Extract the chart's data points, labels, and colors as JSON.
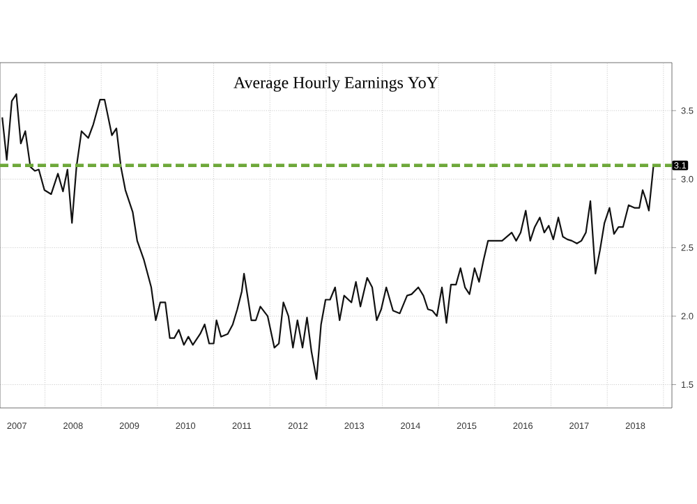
{
  "chart_data": {
    "type": "line",
    "title": "Average Hourly Earnings YoY",
    "x": [
      2007.24,
      2007.32,
      2007.41,
      2007.49,
      2007.57,
      2007.65,
      2007.74,
      2007.82,
      2007.89,
      2007.99,
      2008.11,
      2008.23,
      2008.32,
      2008.4,
      2008.48,
      2008.56,
      2008.65,
      2008.77,
      2008.86,
      2008.98,
      2009.06,
      2009.19,
      2009.27,
      2009.35,
      2009.43,
      2009.56,
      2009.64,
      2009.76,
      2009.89,
      2009.97,
      2010.05,
      2010.14,
      2010.22,
      2010.3,
      2010.38,
      2010.47,
      2010.55,
      2010.63,
      2010.76,
      2010.84,
      2010.92,
      2011.0,
      2011.05,
      2011.13,
      2011.25,
      2011.34,
      2011.42,
      2011.5,
      2011.54,
      2011.67,
      2011.75,
      2011.83,
      2011.96,
      2012.08,
      2012.16,
      2012.24,
      2012.33,
      2012.41,
      2012.49,
      2012.58,
      2012.66,
      2012.74,
      2012.83,
      2012.91,
      2012.99,
      2013.07,
      2013.16,
      2013.24,
      2013.32,
      2013.45,
      2013.53,
      2013.61,
      2013.73,
      2013.82,
      2013.9,
      2013.98,
      2014.07,
      2014.19,
      2014.31,
      2014.44,
      2014.52,
      2014.64,
      2014.73,
      2014.81,
      2014.89,
      2014.97,
      2015.06,
      2015.14,
      2015.22,
      2015.31,
      2015.39,
      2015.47,
      2015.55,
      2015.64,
      2015.72,
      2015.8,
      2015.88,
      2016.01,
      2016.13,
      2016.3,
      2016.38,
      2016.46,
      2016.55,
      2016.63,
      2016.71,
      2016.8,
      2016.88,
      2016.96,
      2017.04,
      2017.13,
      2017.21,
      2017.29,
      2017.37,
      2017.46,
      2017.54,
      2017.62,
      2017.7,
      2017.79,
      2017.87,
      2017.95,
      2018.04,
      2018.12,
      2018.2,
      2018.28,
      2018.38,
      2018.49,
      2018.57,
      2018.63,
      2018.68,
      2018.74,
      2018.82
    ],
    "series": [
      {
        "color": "#111111",
        "values": [
          3.45,
          3.14,
          3.57,
          3.62,
          3.26,
          3.35,
          3.09,
          3.06,
          3.07,
          2.92,
          2.89,
          3.04,
          2.91,
          3.07,
          2.68,
          3.09,
          3.35,
          3.3,
          3.4,
          3.58,
          3.58,
          3.32,
          3.37,
          3.09,
          2.92,
          2.76,
          2.55,
          2.41,
          2.21,
          1.97,
          2.1,
          2.1,
          1.84,
          1.84,
          1.9,
          1.79,
          1.85,
          1.79,
          1.87,
          1.94,
          1.8,
          1.8,
          1.97,
          1.85,
          1.87,
          1.94,
          2.05,
          2.18,
          2.31,
          1.97,
          1.97,
          2.07,
          2.0,
          1.77,
          1.8,
          2.1,
          2.0,
          1.77,
          1.97,
          1.77,
          1.99,
          1.74,
          1.54,
          1.94,
          2.12,
          2.12,
          2.21,
          1.97,
          2.15,
          2.1,
          2.25,
          2.07,
          2.28,
          2.21,
          1.97,
          2.05,
          2.21,
          2.04,
          2.02,
          2.15,
          2.16,
          2.21,
          2.15,
          2.05,
          2.04,
          2.0,
          2.21,
          1.95,
          2.23,
          2.23,
          2.35,
          2.21,
          2.16,
          2.35,
          2.25,
          2.41,
          2.55,
          2.55,
          2.55,
          2.61,
          2.55,
          2.61,
          2.77,
          2.55,
          2.65,
          2.72,
          2.61,
          2.66,
          2.56,
          2.72,
          2.58,
          2.56,
          2.55,
          2.53,
          2.55,
          2.61,
          2.84,
          2.31,
          2.48,
          2.68,
          2.79,
          2.6,
          2.65,
          2.65,
          2.81,
          2.79,
          2.79,
          2.92,
          2.86,
          2.77,
          3.09
        ]
      }
    ],
    "xlim": [
      2007.2,
      2019.15
    ],
    "ylim": [
      1.33,
      3.85
    ],
    "xticks": [
      {
        "value": 2007.5,
        "label": "2007"
      },
      {
        "value": 2008,
        "label": null
      },
      {
        "value": 2008.5,
        "label": "2008"
      },
      {
        "value": 2009,
        "label": null
      },
      {
        "value": 2009.5,
        "label": "2009"
      },
      {
        "value": 2010,
        "label": null
      },
      {
        "value": 2010.5,
        "label": "2010"
      },
      {
        "value": 2011,
        "label": null
      },
      {
        "value": 2011.5,
        "label": "2011"
      },
      {
        "value": 2012,
        "label": null
      },
      {
        "value": 2012.5,
        "label": "2012"
      },
      {
        "value": 2013,
        "label": null
      },
      {
        "value": 2013.5,
        "label": "2013"
      },
      {
        "value": 2014,
        "label": null
      },
      {
        "value": 2014.5,
        "label": "2014"
      },
      {
        "value": 2015,
        "label": null
      },
      {
        "value": 2015.5,
        "label": "2015"
      },
      {
        "value": 2016,
        "label": null
      },
      {
        "value": 2016.5,
        "label": "2016"
      },
      {
        "value": 2017,
        "label": null
      },
      {
        "value": 2017.5,
        "label": "2017"
      },
      {
        "value": 2018,
        "label": null
      },
      {
        "value": 2018.5,
        "label": "2018"
      },
      {
        "value": 2019,
        "label": null
      }
    ],
    "yticks": [
      1.5,
      {
        "value": 2,
        "label": "2.0"
      },
      2.5,
      {
        "value": 3,
        "label": "3.0"
      },
      3.5
    ],
    "grid": true,
    "marker": "none",
    "line_style": "solid",
    "ref_lines": [
      {
        "axis": "y",
        "value": 3.1,
        "label": "3.1",
        "color": "#6ea83a",
        "line_style": "dashed"
      }
    ]
  }
}
